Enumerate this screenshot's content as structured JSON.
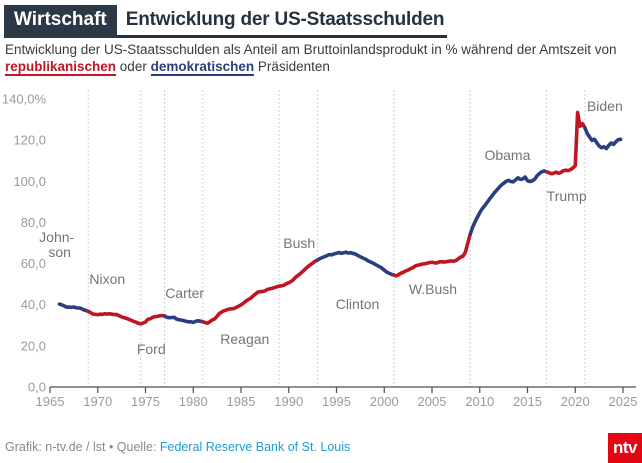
{
  "header": {
    "category": "Wirtschaft",
    "title": "Entwicklung der US-Staatsschulden"
  },
  "subtitle": {
    "part1": "Entwicklung der US-Staatsschulden als Anteil am Bruttoinlandsprodukt in % während der Amtszeit von",
    "republican_word": "republikanischen",
    "conjunction": " oder ",
    "democratic_word": "demokratischen",
    "part2": " Präsidenten"
  },
  "footer": {
    "credit": "Grafik: n-tv.de / lst • Quelle: ",
    "source_link": "Federal Reserve Bank of St. Louis",
    "logo": "ntv"
  },
  "colors": {
    "republican": "#be1622",
    "democrat": "#2b3e80",
    "axis": "#4d4d4d",
    "tick_label": "#9a9a9a",
    "president_label": "#757575",
    "divider": "#c2c2c2",
    "header_dark": "#2b3947",
    "link_blue": "#1e9cd7",
    "logo_red": "#e30613"
  },
  "chart_data": {
    "type": "line",
    "title": "Entwicklung der US-Staatsschulden",
    "unit": "%",
    "grid": "off",
    "legend_position": "none",
    "xlim": [
      1965,
      2025.5
    ],
    "ylim": [
      0,
      145
    ],
    "x_start_year": 1966,
    "points_per_year": 4,
    "x_ticks": [
      1965,
      1970,
      1975,
      1980,
      1985,
      1990,
      1995,
      2000,
      2005,
      2010,
      2015,
      2020,
      2025
    ],
    "x_tick_labels": [
      "1965",
      "1970",
      "1975",
      "1980",
      "1985",
      "1990",
      "1995",
      "2000",
      "2005",
      "2010",
      "2015",
      "2020",
      "2025"
    ],
    "y_ticks": [
      0,
      20,
      40,
      60,
      80,
      100,
      120,
      140
    ],
    "y_tick_labels": [
      "0,0",
      "20,0",
      "40,0",
      "60,0",
      "80,0",
      "100,0",
      "120,0",
      "140,0%"
    ],
    "divider_years": [
      1969,
      1974.5,
      1977,
      1981,
      1989,
      1993,
      2001,
      2009,
      2017,
      2021
    ],
    "values": [
      40.3,
      39.9,
      39.4,
      38.8,
      38.9,
      38.7,
      38.9,
      38.5,
      38.4,
      38.2,
      37.6,
      37.2,
      36.8,
      36.1,
      35.5,
      35.3,
      35.2,
      35.4,
      35.3,
      35.6,
      35.5,
      35.6,
      35.4,
      35.2,
      35.2,
      34.6,
      34.1,
      33.7,
      33.4,
      32.9,
      32.4,
      31.9,
      31.5,
      31.0,
      30.7,
      31.1,
      31.6,
      32.9,
      33.2,
      33.9,
      34.2,
      34.3,
      34.6,
      34.7,
      34.5,
      33.9,
      33.7,
      33.8,
      33.9,
      33.0,
      32.7,
      32.5,
      32.3,
      31.9,
      31.7,
      31.7,
      31.4,
      31.9,
      32.2,
      32.0,
      31.7,
      31.3,
      31.0,
      31.8,
      32.6,
      33.1,
      34.4,
      35.8,
      36.5,
      37.1,
      37.5,
      37.9,
      38.0,
      38.1,
      38.7,
      39.3,
      39.9,
      40.7,
      41.7,
      42.5,
      43.1,
      44.2,
      45.1,
      46.1,
      46.4,
      46.4,
      46.7,
      47.4,
      47.7,
      48.0,
      48.3,
      48.7,
      49.0,
      49.2,
      49.5,
      50.2,
      50.7,
      51.3,
      52.2,
      53.5,
      54.3,
      55.3,
      56.3,
      57.5,
      58.5,
      59.4,
      60.2,
      61.1,
      61.7,
      62.4,
      62.9,
      63.4,
      63.9,
      64.4,
      64.2,
      64.7,
      65.0,
      65.4,
      65.0,
      65.3,
      65.6,
      65.1,
      65.3,
      64.9,
      64.6,
      63.9,
      63.3,
      62.7,
      62.2,
      61.5,
      60.9,
      60.4,
      59.8,
      59.1,
      58.5,
      57.8,
      56.8,
      55.9,
      55.3,
      54.8,
      54.4,
      54.0,
      54.6,
      55.3,
      55.8,
      56.4,
      56.9,
      57.5,
      58.0,
      58.8,
      59.2,
      59.5,
      59.8,
      59.9,
      60.2,
      60.5,
      60.6,
      60.4,
      60.3,
      60.8,
      60.9,
      60.7,
      60.9,
      61.1,
      61.3,
      61.1,
      61.5,
      62.3,
      63.2,
      63.6,
      65.6,
      70.0,
      74.3,
      77.7,
      80.2,
      82.6,
      84.8,
      86.6,
      88.0,
      89.6,
      91.2,
      92.7,
      94.3,
      95.5,
      96.9,
      98.1,
      99.0,
      99.9,
      100.5,
      99.9,
      99.7,
      100.7,
      101.7,
      100.9,
      101.1,
      102.1,
      100.3,
      99.9,
      100.2,
      101.0,
      102.6,
      103.8,
      104.6,
      105.0,
      104.6,
      104.2,
      103.7,
      104.0,
      104.4,
      103.9,
      104.3,
      105.1,
      105.4,
      105.2,
      105.7,
      106.5,
      107.6,
      133.4,
      126.8,
      128.0,
      126.1,
      123.3,
      121.5,
      119.9,
      120.4,
      118.8,
      117.2,
      116.3,
      116.8,
      115.9,
      117.4,
      118.6,
      117.9,
      119.2,
      120.2,
      120.4
    ],
    "presidents": [
      {
        "name": "Johnson",
        "party": "D",
        "start": 0,
        "end": 12,
        "label_lines": [
          "John-",
          "son"
        ],
        "label_year": 1965.7,
        "label_value": 73
      },
      {
        "name": "Nixon",
        "party": "R",
        "start": 12,
        "end": 34,
        "label_lines": [
          "Nixon"
        ],
        "label_year": 1971.0,
        "label_value": 52.5
      },
      {
        "name": "Ford",
        "party": "R",
        "start": 34,
        "end": 44,
        "label_lines": [
          "Ford"
        ],
        "label_year": 1975.6,
        "label_value": 18.5
      },
      {
        "name": "Carter",
        "party": "D",
        "start": 44,
        "end": 60,
        "label_lines": [
          "Carter"
        ],
        "label_year": 1979.1,
        "label_value": 45.7
      },
      {
        "name": "Reagan",
        "party": "R",
        "start": 60,
        "end": 92,
        "label_lines": [
          "Reagan"
        ],
        "label_year": 1985.4,
        "label_value": 23.3
      },
      {
        "name": "Bush",
        "party": "R",
        "start": 92,
        "end": 108,
        "label_lines": [
          "Bush"
        ],
        "label_year": 1991.1,
        "label_value": 70.0
      },
      {
        "name": "Clinton",
        "party": "D",
        "start": 108,
        "end": 140,
        "label_lines": [
          "Clinton"
        ],
        "label_year": 1997.2,
        "label_value": 40.4
      },
      {
        "name": "W.Bush",
        "party": "R",
        "start": 140,
        "end": 172,
        "label_lines": [
          "W.Bush"
        ],
        "label_year": 2005.1,
        "label_value": 47.6
      },
      {
        "name": "Obama",
        "party": "D",
        "start": 172,
        "end": 204,
        "label_lines": [
          "Obama"
        ],
        "label_year": 2012.9,
        "label_value": 112.8
      },
      {
        "name": "Trump",
        "party": "R",
        "start": 204,
        "end": 220,
        "label_lines": [
          "Trump"
        ],
        "label_year": 2019.1,
        "label_value": 92.9
      },
      {
        "name": "Biden",
        "party": "D",
        "start": 220,
        "end": 235,
        "label_lines": [
          "Biden"
        ],
        "label_year": 2023.1,
        "label_value": 136.6
      }
    ]
  }
}
